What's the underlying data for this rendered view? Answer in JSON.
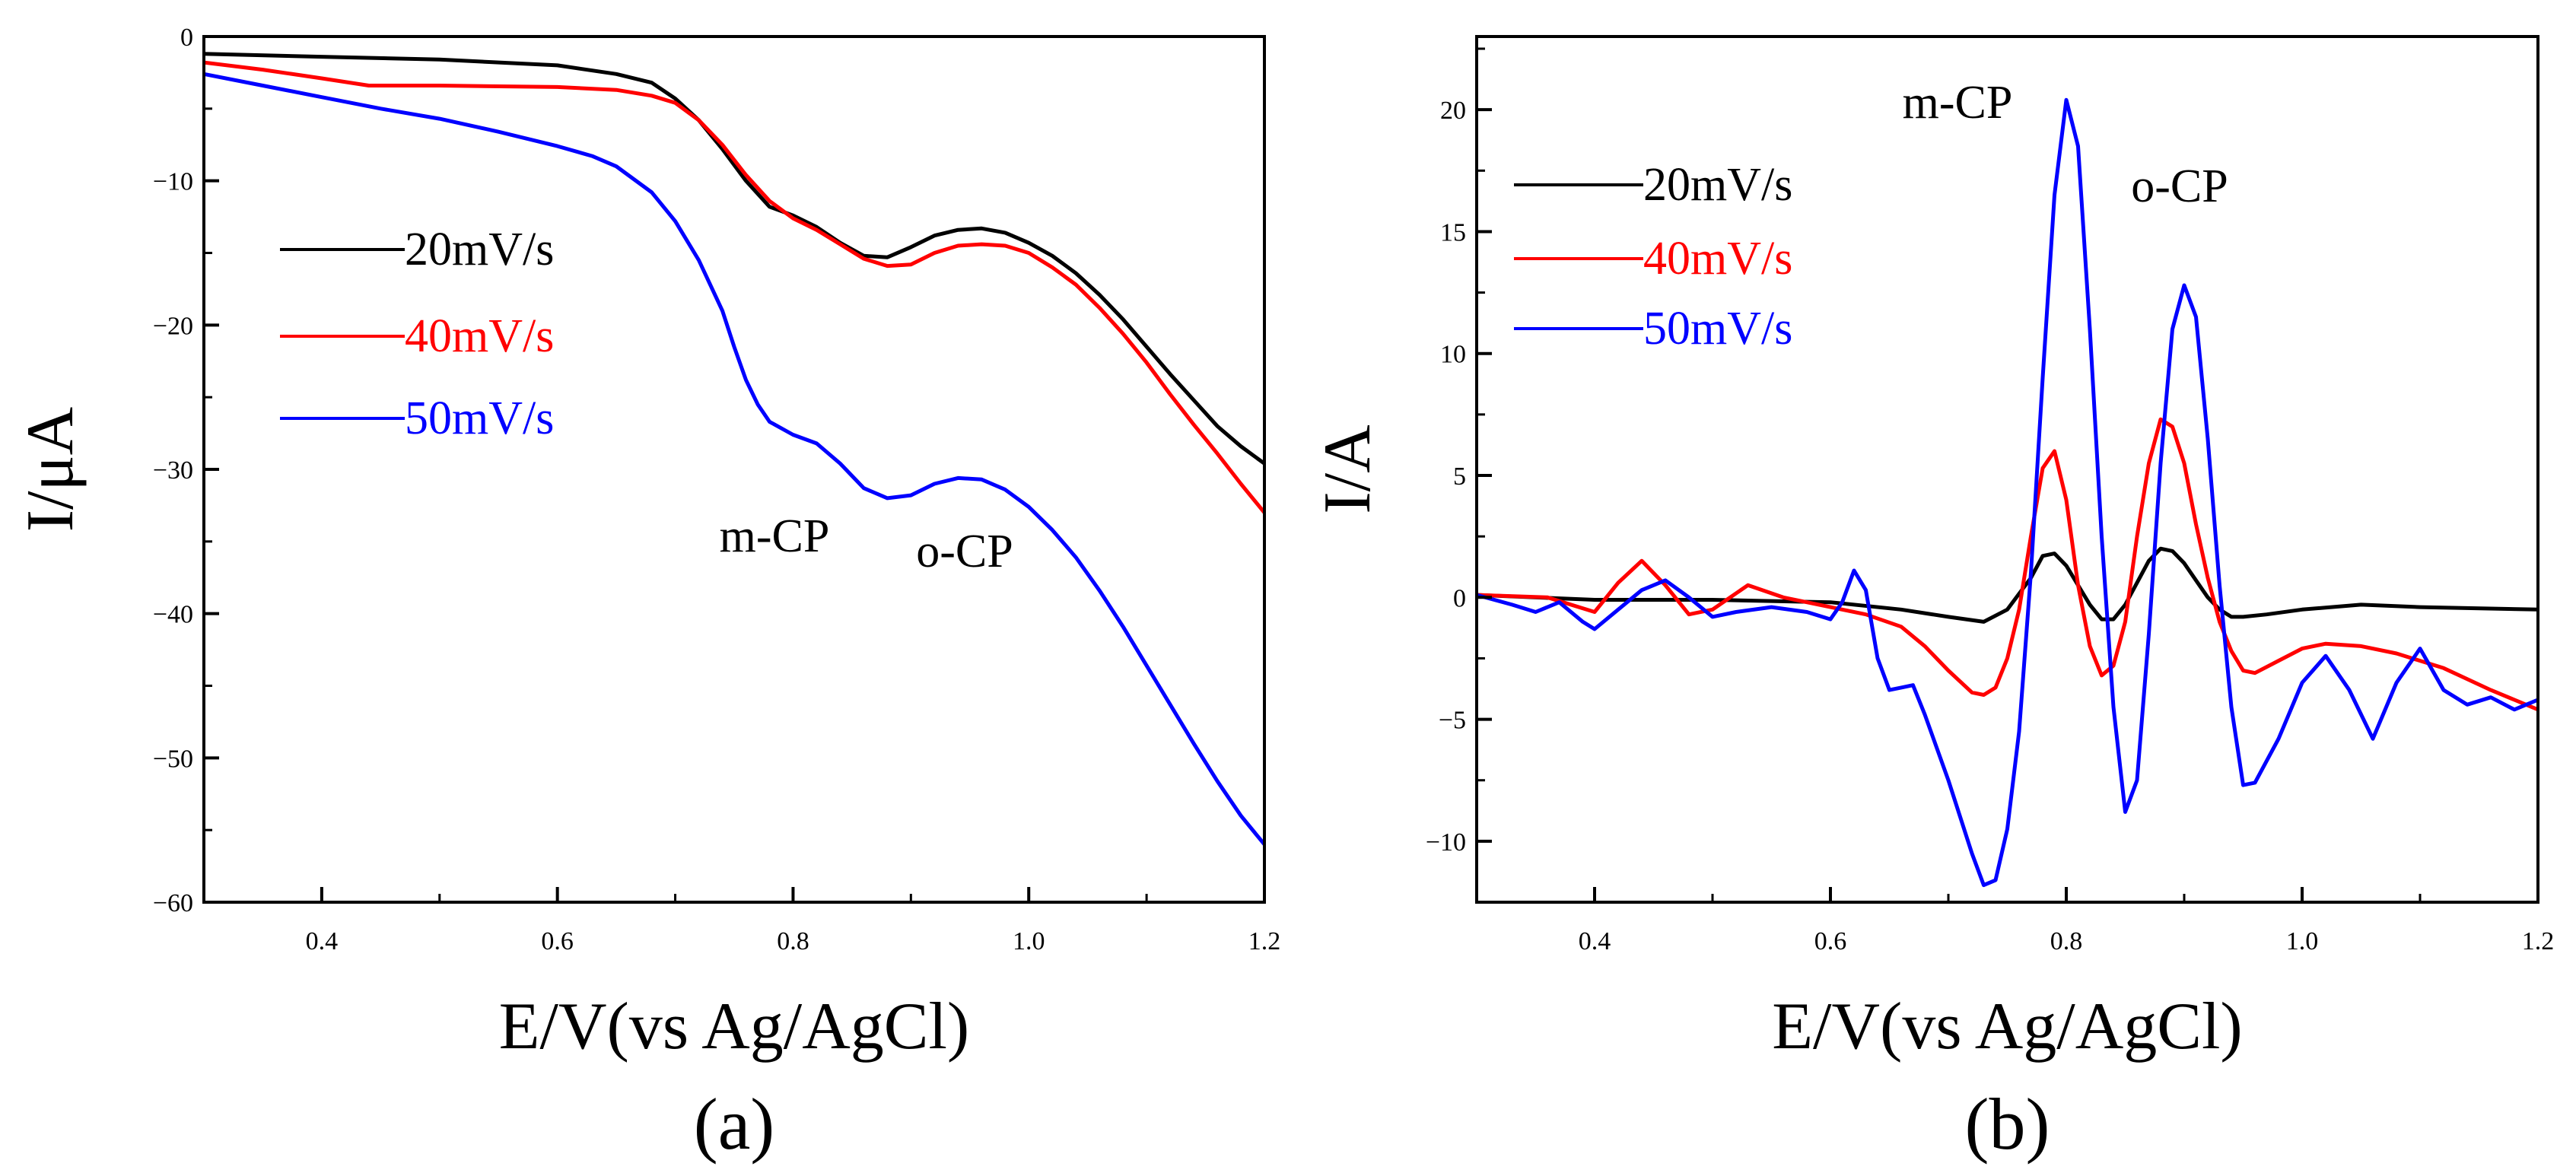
{
  "chart_data": [
    {
      "type": "line",
      "panel_label": "(a)",
      "xlabel": "E/V(vs Ag/AgCl)",
      "ylabel": "I/μA",
      "xlim": [
        0.3,
        1.2
      ],
      "ylim": [
        -60,
        0
      ],
      "xticks": [
        0.4,
        0.6,
        0.8,
        1.0,
        1.2
      ],
      "xtick_labels": [
        "0.4",
        "0.6",
        "0.8",
        "1.0",
        "1.2"
      ],
      "yticks": [
        0,
        -10,
        -20,
        -30,
        -40,
        -50,
        -60
      ],
      "ytick_labels": [
        "0",
        "−10",
        "−20",
        "−30",
        "−40",
        "−50",
        "−60"
      ],
      "legend_position": "left-middle",
      "annotations": [
        "m-CP",
        "o-CP"
      ],
      "series": [
        {
          "name": "20mV/s",
          "color": "#000000",
          "x": [
            0.3,
            0.4,
            0.5,
            0.6,
            0.65,
            0.68,
            0.7,
            0.72,
            0.74,
            0.76,
            0.78,
            0.8,
            0.82,
            0.84,
            0.86,
            0.88,
            0.9,
            0.92,
            0.94,
            0.96,
            0.98,
            1.0,
            1.02,
            1.04,
            1.06,
            1.08,
            1.1,
            1.12,
            1.14,
            1.16,
            1.18,
            1.2
          ],
          "y": [
            -1.2,
            -1.4,
            -1.6,
            -2.0,
            -2.6,
            -3.2,
            -4.3,
            -5.8,
            -7.8,
            -10.0,
            -11.8,
            -12.4,
            -13.2,
            -14.3,
            -15.2,
            -15.3,
            -14.6,
            -13.8,
            -13.4,
            -13.3,
            -13.6,
            -14.3,
            -15.2,
            -16.4,
            -17.9,
            -19.6,
            -21.5,
            -23.4,
            -25.2,
            -27.0,
            -28.4,
            -29.6
          ]
        },
        {
          "name": "40mV/s",
          "color": "#ff0000",
          "x": [
            0.3,
            0.35,
            0.4,
            0.44,
            0.5,
            0.6,
            0.65,
            0.68,
            0.7,
            0.72,
            0.74,
            0.76,
            0.78,
            0.8,
            0.82,
            0.84,
            0.86,
            0.88,
            0.9,
            0.92,
            0.94,
            0.96,
            0.98,
            1.0,
            1.02,
            1.04,
            1.06,
            1.08,
            1.1,
            1.12,
            1.14,
            1.16,
            1.18,
            1.2
          ],
          "y": [
            -1.8,
            -2.3,
            -2.9,
            -3.4,
            -3.4,
            -3.5,
            -3.7,
            -4.1,
            -4.6,
            -5.8,
            -7.5,
            -9.6,
            -11.4,
            -12.6,
            -13.4,
            -14.4,
            -15.4,
            -15.9,
            -15.8,
            -15.0,
            -14.5,
            -14.4,
            -14.5,
            -15.0,
            -16.0,
            -17.2,
            -18.8,
            -20.6,
            -22.6,
            -24.8,
            -26.9,
            -28.9,
            -31.0,
            -33.0
          ]
        },
        {
          "name": "50mV/s",
          "color": "#0000ff",
          "x": [
            0.3,
            0.35,
            0.4,
            0.45,
            0.5,
            0.55,
            0.6,
            0.63,
            0.65,
            0.68,
            0.7,
            0.72,
            0.74,
            0.75,
            0.76,
            0.77,
            0.78,
            0.8,
            0.82,
            0.84,
            0.86,
            0.88,
            0.9,
            0.92,
            0.94,
            0.96,
            0.98,
            1.0,
            1.02,
            1.04,
            1.06,
            1.08,
            1.1,
            1.12,
            1.14,
            1.16,
            1.18,
            1.2
          ],
          "y": [
            -2.6,
            -3.4,
            -4.2,
            -5.0,
            -5.7,
            -6.6,
            -7.6,
            -8.3,
            -9.0,
            -10.8,
            -12.8,
            -15.5,
            -19.0,
            -21.5,
            -23.8,
            -25.5,
            -26.7,
            -27.6,
            -28.2,
            -29.6,
            -31.3,
            -32.0,
            -31.8,
            -31.0,
            -30.6,
            -30.7,
            -31.4,
            -32.6,
            -34.2,
            -36.1,
            -38.4,
            -40.9,
            -43.6,
            -46.3,
            -49.0,
            -51.6,
            -54.0,
            -56.0
          ]
        }
      ]
    },
    {
      "type": "line",
      "panel_label": "(b)",
      "xlabel": "E/V(vs Ag/AgCl)",
      "ylabel": "I/A",
      "xlim": [
        0.3,
        1.2
      ],
      "ylim": [
        -12.5,
        23
      ],
      "xticks": [
        0.4,
        0.6,
        0.8,
        1.0,
        1.2
      ],
      "xtick_labels": [
        "0.4",
        "0.6",
        "0.8",
        "1.0",
        "1.2"
      ],
      "yticks": [
        -10,
        -5,
        0,
        5,
        10,
        15,
        20
      ],
      "ytick_labels": [
        "−10",
        "−5",
        "0",
        "5",
        "10",
        "15",
        "20"
      ],
      "legend_position": "top-left",
      "annotations": [
        "m-CP",
        "o-CP"
      ],
      "series": [
        {
          "name": "20mV/s",
          "color": "#000000",
          "x": [
            0.3,
            0.4,
            0.5,
            0.6,
            0.66,
            0.7,
            0.73,
            0.75,
            0.77,
            0.78,
            0.79,
            0.8,
            0.81,
            0.82,
            0.83,
            0.84,
            0.85,
            0.86,
            0.87,
            0.88,
            0.89,
            0.9,
            0.91,
            0.92,
            0.93,
            0.94,
            0.95,
            0.97,
            1.0,
            1.05,
            1.1,
            1.2
          ],
          "y": [
            0.1,
            -0.1,
            -0.1,
            -0.2,
            -0.5,
            -0.8,
            -1.0,
            -0.5,
            0.8,
            1.7,
            1.8,
            1.3,
            0.5,
            -0.3,
            -0.9,
            -0.9,
            -0.3,
            0.6,
            1.5,
            2.0,
            1.9,
            1.4,
            0.7,
            0.0,
            -0.5,
            -0.8,
            -0.8,
            -0.7,
            -0.5,
            -0.3,
            -0.4,
            -0.5
          ]
        },
        {
          "name": "40mV/s",
          "color": "#ff0000",
          "x": [
            0.3,
            0.36,
            0.4,
            0.42,
            0.44,
            0.46,
            0.48,
            0.5,
            0.53,
            0.56,
            0.6,
            0.63,
            0.66,
            0.68,
            0.7,
            0.72,
            0.73,
            0.74,
            0.75,
            0.76,
            0.77,
            0.78,
            0.79,
            0.8,
            0.81,
            0.82,
            0.83,
            0.84,
            0.85,
            0.86,
            0.87,
            0.88,
            0.89,
            0.9,
            0.91,
            0.92,
            0.93,
            0.94,
            0.95,
            0.96,
            0.98,
            1.0,
            1.02,
            1.05,
            1.08,
            1.12,
            1.16,
            1.2
          ],
          "y": [
            0.1,
            0.0,
            -0.6,
            0.6,
            1.5,
            0.5,
            -0.7,
            -0.5,
            0.5,
            0.0,
            -0.4,
            -0.7,
            -1.2,
            -2.0,
            -3.0,
            -3.9,
            -4.0,
            -3.7,
            -2.5,
            -0.5,
            2.5,
            5.3,
            6.0,
            4.0,
            0.5,
            -2.0,
            -3.2,
            -2.8,
            -1.0,
            2.5,
            5.5,
            7.3,
            7.0,
            5.5,
            3.0,
            0.8,
            -1.0,
            -2.2,
            -3.0,
            -3.1,
            -2.6,
            -2.1,
            -1.9,
            -2.0,
            -2.3,
            -2.9,
            -3.8,
            -4.6
          ]
        },
        {
          "name": "50mV/s",
          "color": "#0000ff",
          "x": [
            0.3,
            0.33,
            0.35,
            0.37,
            0.39,
            0.4,
            0.42,
            0.44,
            0.46,
            0.48,
            0.5,
            0.52,
            0.55,
            0.58,
            0.6,
            0.61,
            0.62,
            0.63,
            0.64,
            0.65,
            0.66,
            0.67,
            0.68,
            0.7,
            0.72,
            0.73,
            0.74,
            0.75,
            0.76,
            0.77,
            0.78,
            0.79,
            0.8,
            0.81,
            0.82,
            0.83,
            0.84,
            0.85,
            0.86,
            0.87,
            0.88,
            0.89,
            0.9,
            0.91,
            0.92,
            0.93,
            0.94,
            0.95,
            0.96,
            0.98,
            1.0,
            1.02,
            1.04,
            1.06,
            1.08,
            1.1,
            1.12,
            1.14,
            1.16,
            1.18,
            1.2
          ],
          "y": [
            0.1,
            -0.3,
            -0.6,
            -0.2,
            -1.0,
            -1.3,
            -0.5,
            0.3,
            0.7,
            0.0,
            -0.8,
            -0.6,
            -0.4,
            -0.6,
            -0.9,
            -0.2,
            1.1,
            0.3,
            -2.5,
            -3.8,
            -3.7,
            -3.6,
            -4.8,
            -7.5,
            -10.5,
            -11.8,
            -11.6,
            -9.5,
            -5.5,
            1.0,
            9.0,
            16.5,
            20.4,
            18.5,
            11.0,
            2.5,
            -4.5,
            -8.8,
            -7.5,
            -1.5,
            5.5,
            11.0,
            12.8,
            11.5,
            6.5,
            0.5,
            -4.5,
            -7.7,
            -7.6,
            -5.8,
            -3.5,
            -2.4,
            -3.8,
            -5.8,
            -3.5,
            -2.1,
            -3.8,
            -4.4,
            -4.1,
            -4.6,
            -4.2
          ]
        }
      ]
    }
  ]
}
